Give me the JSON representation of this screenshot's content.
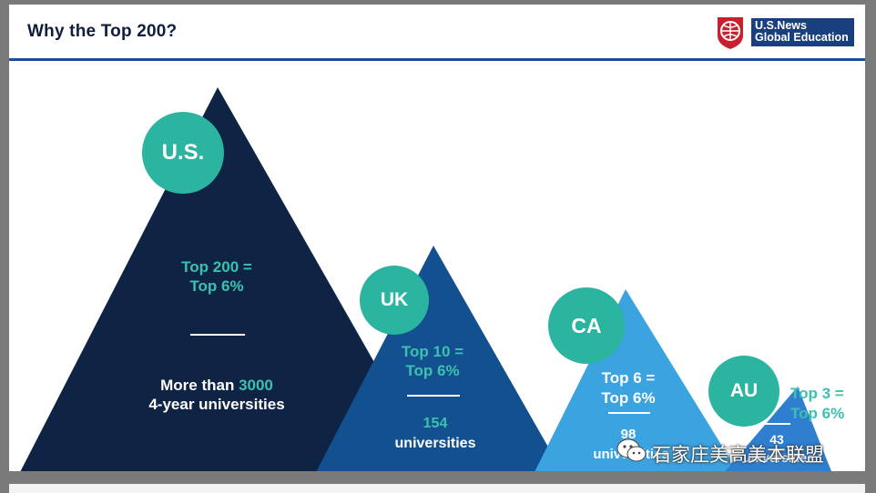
{
  "header": {
    "title": "Why the Top 200?",
    "logo_line1": "U.S.News",
    "logo_line2": "Global Education"
  },
  "colors": {
    "navy": "#0f2444",
    "mid_blue": "#12508f",
    "light_blue": "#3aa3e0",
    "sky_blue": "#2f7fd0",
    "teal": "#2bb4a0",
    "teal_text": "#3cc1b0"
  },
  "mountains": [
    {
      "country": "U.S.",
      "top_line1": "Top 200 =",
      "top_line2": "Top 6%",
      "count_prefix": "More than ",
      "count_value": "3000",
      "count_suffix": "4-year universities"
    },
    {
      "country": "UK",
      "top_line1": "Top 10 =",
      "top_line2": "Top 6%",
      "count_value": "154",
      "count_suffix": "universities"
    },
    {
      "country": "CA",
      "top_line1": "Top 6 =",
      "top_line2": "Top 6%",
      "count_value": "98",
      "count_suffix": "universities"
    },
    {
      "country": "AU",
      "top_line1": "Top 3 =",
      "top_line2": "Top 6%",
      "count_value": "43",
      "count_suffix": "universities"
    }
  ],
  "watermark": {
    "text": "石家庄美高美本联盟",
    "icon": "wechat-icon"
  }
}
